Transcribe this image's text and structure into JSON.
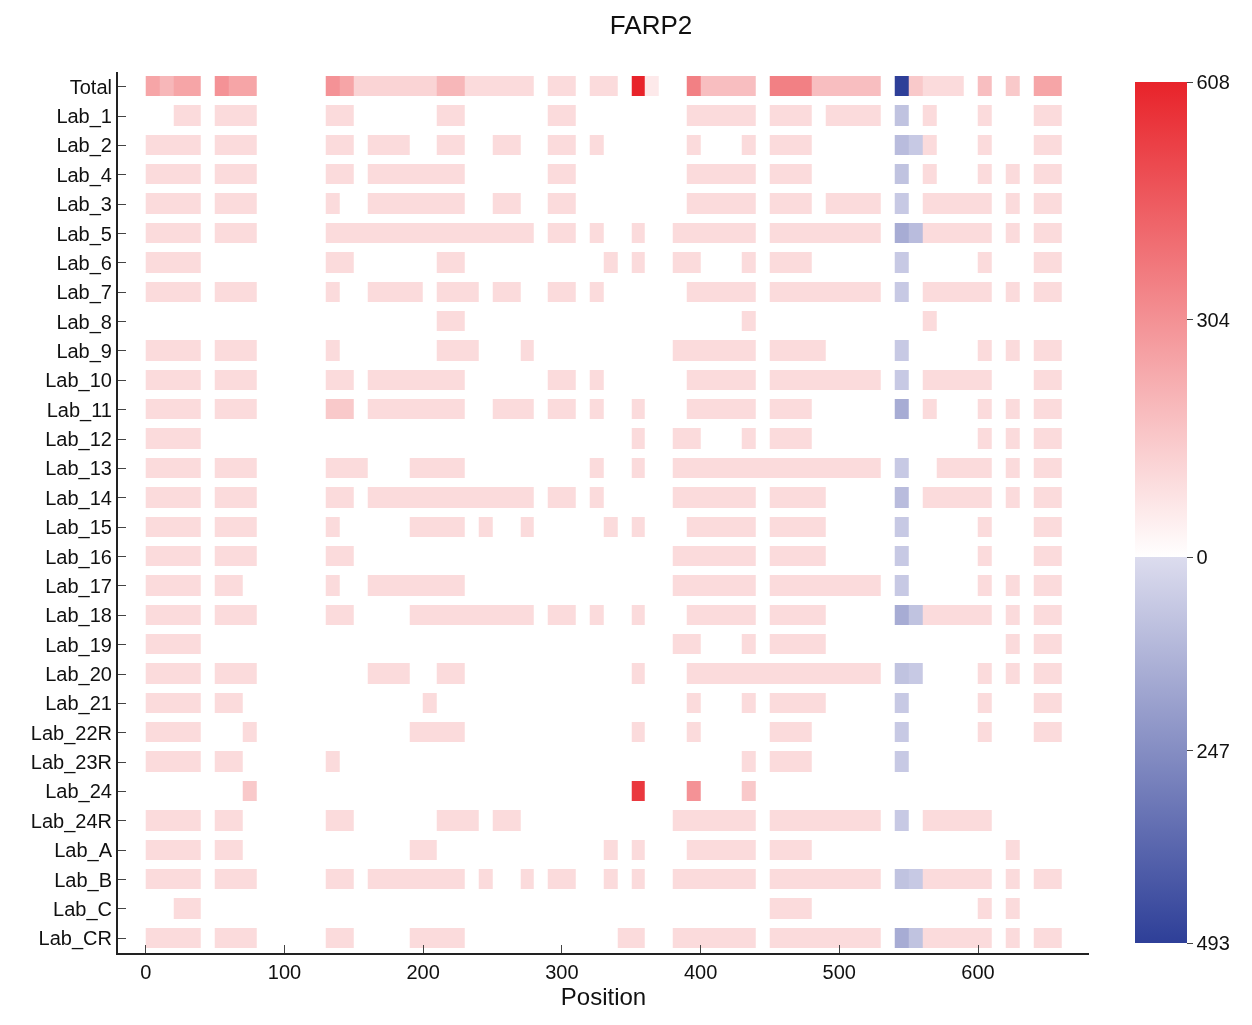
{
  "chart_data": {
    "type": "heatmap",
    "title": "FARP2",
    "xlabel": "Position",
    "x": [
      5,
      15,
      25,
      35,
      45,
      55,
      65,
      75,
      85,
      95,
      105,
      115,
      125,
      135,
      145,
      155,
      165,
      175,
      185,
      195,
      205,
      215,
      225,
      235,
      245,
      255,
      265,
      275,
      285,
      295,
      305,
      315,
      325,
      335,
      345,
      355,
      365,
      375,
      385,
      395,
      405,
      415,
      425,
      435,
      445,
      455,
      465,
      475,
      485,
      495,
      505,
      515,
      525,
      535,
      545,
      555,
      565,
      575,
      585,
      595,
      605,
      615,
      625,
      635,
      645,
      655
    ],
    "xlim": [
      -20,
      680
    ],
    "xticks": [
      0,
      100,
      200,
      300,
      400,
      500,
      600
    ],
    "y_categories": [
      "Total",
      "Lab_1",
      "Lab_2",
      "Lab_4",
      "Lab_3",
      "Lab_5",
      "Lab_6",
      "Lab_7",
      "Lab_8",
      "Lab_9",
      "Lab_10",
      "Lab_11",
      "Lab_12",
      "Lab_13",
      "Lab_14",
      "Lab_15",
      "Lab_16",
      "Lab_17",
      "Lab_18",
      "Lab_19",
      "Lab_20",
      "Lab_21",
      "Lab_22R",
      "Lab_23R",
      "Lab_24",
      "Lab_24R",
      "Lab_A",
      "Lab_B",
      "Lab_C",
      "Lab_CR"
    ],
    "clim": [
      -493,
      608
    ],
    "cticks": [
      608,
      304,
      0,
      {
        "value": -247,
        "label": "247"
      },
      {
        "value": -493,
        "label": "493"
      }
    ],
    "colors": [
      "#2e3f98",
      "#dcdcee",
      "#ffffff",
      "#e8232a"
    ],
    "cells": [
      [
        250,
        200,
        250,
        250,
        0,
        300,
        250,
        250,
        0,
        0,
        0,
        0,
        0,
        300,
        250,
        120,
        120,
        120,
        120,
        120,
        120,
        200,
        200,
        100,
        100,
        100,
        100,
        100,
        0,
        100,
        100,
        0,
        100,
        100,
        0,
        608,
        60,
        0,
        0,
        350,
        180,
        180,
        180,
        180,
        0,
        350,
        350,
        350,
        180,
        180,
        180,
        180,
        180,
        0,
        -493,
        150,
        100,
        100,
        100,
        0,
        180,
        0,
        150,
        0,
        250,
        250
      ],
      [
        0,
        0,
        100,
        100,
        0,
        100,
        100,
        100,
        0,
        0,
        0,
        0,
        0,
        100,
        100,
        0,
        0,
        0,
        0,
        0,
        0,
        100,
        100,
        0,
        0,
        0,
        0,
        0,
        0,
        100,
        100,
        0,
        0,
        0,
        0,
        0,
        0,
        0,
        0,
        100,
        100,
        100,
        100,
        100,
        0,
        100,
        100,
        100,
        0,
        100,
        100,
        100,
        100,
        0,
        -80,
        0,
        100,
        0,
        0,
        0,
        100,
        0,
        0,
        0,
        100,
        100
      ],
      [
        100,
        100,
        100,
        100,
        0,
        100,
        100,
        100,
        0,
        0,
        0,
        0,
        0,
        100,
        100,
        0,
        100,
        100,
        100,
        0,
        0,
        100,
        100,
        0,
        0,
        100,
        100,
        0,
        0,
        100,
        100,
        0,
        100,
        0,
        0,
        0,
        0,
        0,
        0,
        100,
        0,
        0,
        0,
        100,
        0,
        100,
        100,
        100,
        0,
        0,
        0,
        0,
        0,
        0,
        -100,
        -60,
        100,
        0,
        0,
        0,
        100,
        0,
        0,
        0,
        100,
        100
      ],
      [
        100,
        100,
        100,
        100,
        0,
        100,
        100,
        100,
        0,
        0,
        0,
        0,
        0,
        100,
        100,
        0,
        100,
        100,
        100,
        100,
        100,
        100,
        100,
        0,
        0,
        0,
        0,
        0,
        0,
        100,
        100,
        0,
        0,
        0,
        0,
        0,
        0,
        0,
        0,
        100,
        100,
        100,
        100,
        100,
        0,
        100,
        100,
        100,
        0,
        0,
        0,
        0,
        0,
        0,
        -80,
        0,
        100,
        0,
        0,
        0,
        100,
        0,
        100,
        0,
        100,
        100
      ],
      [
        100,
        100,
        100,
        100,
        0,
        100,
        100,
        100,
        0,
        0,
        0,
        0,
        0,
        100,
        0,
        0,
        100,
        100,
        100,
        100,
        100,
        100,
        100,
        0,
        0,
        100,
        100,
        0,
        0,
        100,
        100,
        0,
        0,
        0,
        0,
        0,
        0,
        0,
        0,
        100,
        100,
        100,
        100,
        100,
        0,
        100,
        100,
        100,
        0,
        100,
        100,
        100,
        100,
        0,
        -60,
        0,
        100,
        100,
        100,
        100,
        100,
        0,
        100,
        0,
        100,
        100
      ],
      [
        100,
        100,
        100,
        100,
        0,
        100,
        100,
        100,
        0,
        0,
        0,
        0,
        0,
        100,
        100,
        100,
        100,
        100,
        100,
        100,
        100,
        100,
        100,
        100,
        100,
        100,
        100,
        100,
        0,
        100,
        100,
        0,
        100,
        0,
        0,
        100,
        0,
        0,
        100,
        100,
        100,
        100,
        100,
        100,
        0,
        100,
        100,
        100,
        100,
        100,
        100,
        100,
        100,
        0,
        -150,
        -100,
        100,
        100,
        100,
        100,
        100,
        0,
        100,
        0,
        100,
        100
      ],
      [
        100,
        100,
        100,
        100,
        0,
        0,
        0,
        0,
        0,
        0,
        0,
        0,
        0,
        100,
        100,
        0,
        0,
        0,
        0,
        0,
        0,
        100,
        100,
        0,
        0,
        0,
        0,
        0,
        0,
        0,
        0,
        0,
        0,
        100,
        0,
        100,
        0,
        0,
        100,
        100,
        0,
        0,
        0,
        100,
        0,
        100,
        100,
        100,
        0,
        0,
        0,
        0,
        0,
        0,
        -60,
        0,
        0,
        0,
        0,
        0,
        100,
        0,
        0,
        0,
        100,
        100
      ],
      [
        100,
        100,
        100,
        100,
        0,
        100,
        100,
        100,
        0,
        0,
        0,
        0,
        0,
        100,
        0,
        0,
        100,
        100,
        100,
        100,
        0,
        100,
        100,
        100,
        0,
        100,
        100,
        0,
        0,
        100,
        100,
        0,
        100,
        0,
        0,
        0,
        0,
        0,
        0,
        100,
        100,
        100,
        100,
        100,
        0,
        100,
        100,
        100,
        100,
        100,
        100,
        100,
        100,
        0,
        -60,
        0,
        100,
        100,
        100,
        100,
        100,
        0,
        100,
        0,
        100,
        100
      ],
      [
        0,
        0,
        0,
        0,
        0,
        0,
        0,
        0,
        0,
        0,
        0,
        0,
        0,
        0,
        0,
        0,
        0,
        0,
        0,
        0,
        0,
        100,
        100,
        0,
        0,
        0,
        0,
        0,
        0,
        0,
        0,
        0,
        0,
        0,
        0,
        0,
        0,
        0,
        0,
        0,
        0,
        0,
        0,
        100,
        0,
        0,
        0,
        0,
        0,
        0,
        0,
        0,
        0,
        0,
        0,
        0,
        100,
        0,
        0,
        0,
        0,
        0,
        0,
        0,
        0,
        0
      ],
      [
        100,
        100,
        100,
        100,
        0,
        100,
        100,
        100,
        0,
        0,
        0,
        0,
        0,
        100,
        0,
        0,
        0,
        0,
        0,
        0,
        0,
        100,
        100,
        100,
        0,
        0,
        0,
        100,
        0,
        0,
        0,
        0,
        0,
        0,
        0,
        0,
        0,
        0,
        100,
        100,
        100,
        100,
        100,
        100,
        0,
        100,
        100,
        100,
        100,
        0,
        0,
        0,
        0,
        0,
        -60,
        0,
        0,
        0,
        0,
        0,
        100,
        0,
        100,
        0,
        100,
        100
      ],
      [
        100,
        100,
        100,
        100,
        0,
        100,
        100,
        100,
        0,
        0,
        0,
        0,
        0,
        100,
        100,
        0,
        100,
        100,
        100,
        100,
        100,
        100,
        100,
        0,
        0,
        0,
        0,
        0,
        0,
        100,
        100,
        0,
        100,
        0,
        0,
        0,
        0,
        0,
        0,
        100,
        100,
        100,
        100,
        100,
        0,
        100,
        100,
        100,
        100,
        100,
        100,
        100,
        100,
        0,
        -60,
        0,
        100,
        100,
        100,
        100,
        100,
        0,
        0,
        0,
        100,
        100
      ],
      [
        100,
        100,
        100,
        100,
        0,
        100,
        100,
        100,
        0,
        0,
        0,
        0,
        0,
        150,
        150,
        0,
        100,
        100,
        100,
        100,
        100,
        100,
        100,
        0,
        0,
        100,
        100,
        100,
        0,
        100,
        100,
        0,
        100,
        0,
        0,
        100,
        0,
        0,
        0,
        100,
        100,
        100,
        100,
        100,
        0,
        100,
        100,
        100,
        0,
        0,
        0,
        0,
        0,
        0,
        -150,
        0,
        100,
        0,
        0,
        0,
        100,
        0,
        100,
        0,
        100,
        100
      ],
      [
        100,
        100,
        100,
        100,
        0,
        0,
        0,
        0,
        0,
        0,
        0,
        0,
        0,
        0,
        0,
        0,
        0,
        0,
        0,
        0,
        0,
        0,
        0,
        0,
        0,
        0,
        0,
        0,
        0,
        0,
        0,
        0,
        0,
        0,
        0,
        100,
        0,
        0,
        100,
        100,
        0,
        0,
        0,
        100,
        0,
        100,
        100,
        100,
        0,
        0,
        0,
        0,
        0,
        0,
        0,
        0,
        0,
        0,
        0,
        0,
        100,
        0,
        100,
        0,
        100,
        100
      ],
      [
        100,
        100,
        100,
        100,
        0,
        100,
        100,
        100,
        0,
        0,
        0,
        0,
        0,
        100,
        100,
        100,
        0,
        0,
        0,
        100,
        100,
        100,
        100,
        0,
        0,
        0,
        0,
        0,
        0,
        0,
        0,
        0,
        100,
        0,
        0,
        100,
        0,
        0,
        100,
        100,
        100,
        100,
        100,
        100,
        100,
        100,
        100,
        100,
        100,
        100,
        100,
        100,
        100,
        0,
        -60,
        0,
        0,
        100,
        100,
        100,
        100,
        0,
        100,
        0,
        100,
        100
      ],
      [
        100,
        100,
        100,
        100,
        0,
        100,
        100,
        100,
        0,
        0,
        0,
        0,
        0,
        100,
        100,
        0,
        100,
        100,
        100,
        100,
        100,
        100,
        100,
        100,
        100,
        100,
        100,
        100,
        0,
        100,
        100,
        0,
        100,
        0,
        0,
        0,
        0,
        0,
        100,
        100,
        100,
        100,
        100,
        100,
        0,
        100,
        100,
        100,
        100,
        0,
        0,
        0,
        0,
        0,
        -100,
        0,
        100,
        100,
        100,
        100,
        100,
        0,
        100,
        0,
        100,
        100
      ],
      [
        100,
        100,
        100,
        100,
        0,
        100,
        100,
        100,
        0,
        0,
        0,
        0,
        0,
        100,
        0,
        0,
        0,
        0,
        0,
        100,
        100,
        100,
        100,
        0,
        100,
        0,
        0,
        100,
        0,
        0,
        0,
        0,
        0,
        100,
        0,
        100,
        0,
        0,
        0,
        100,
        100,
        100,
        100,
        100,
        0,
        100,
        100,
        100,
        100,
        0,
        0,
        0,
        0,
        0,
        -60,
        0,
        0,
        0,
        0,
        0,
        100,
        0,
        0,
        0,
        100,
        100
      ],
      [
        100,
        100,
        100,
        100,
        0,
        100,
        100,
        100,
        0,
        0,
        0,
        0,
        0,
        100,
        100,
        0,
        0,
        0,
        0,
        0,
        0,
        0,
        0,
        0,
        0,
        0,
        0,
        0,
        0,
        0,
        0,
        0,
        0,
        0,
        0,
        0,
        0,
        0,
        100,
        100,
        100,
        100,
        100,
        100,
        0,
        100,
        100,
        100,
        100,
        0,
        0,
        0,
        0,
        0,
        -60,
        0,
        0,
        0,
        0,
        0,
        100,
        0,
        0,
        0,
        100,
        100
      ],
      [
        100,
        100,
        100,
        100,
        0,
        100,
        100,
        0,
        0,
        0,
        0,
        0,
        0,
        100,
        0,
        0,
        100,
        100,
        100,
        100,
        100,
        100,
        100,
        0,
        0,
        0,
        0,
        0,
        0,
        0,
        0,
        0,
        0,
        0,
        0,
        0,
        0,
        0,
        100,
        100,
        100,
        100,
        100,
        100,
        0,
        100,
        100,
        100,
        100,
        100,
        100,
        100,
        100,
        0,
        -60,
        0,
        0,
        0,
        0,
        0,
        100,
        0,
        100,
        0,
        100,
        100
      ],
      [
        100,
        100,
        100,
        100,
        0,
        100,
        100,
        100,
        0,
        0,
        0,
        0,
        0,
        100,
        100,
        0,
        0,
        0,
        0,
        100,
        100,
        100,
        100,
        100,
        100,
        100,
        100,
        100,
        0,
        100,
        100,
        0,
        100,
        0,
        0,
        100,
        0,
        0,
        0,
        100,
        100,
        100,
        100,
        100,
        0,
        100,
        100,
        100,
        100,
        0,
        0,
        0,
        0,
        0,
        -150,
        -80,
        100,
        100,
        100,
        100,
        100,
        0,
        100,
        0,
        100,
        100
      ],
      [
        100,
        100,
        100,
        100,
        0,
        0,
        0,
        0,
        0,
        0,
        0,
        0,
        0,
        0,
        0,
        0,
        0,
        0,
        0,
        0,
        0,
        0,
        0,
        0,
        0,
        0,
        0,
        0,
        0,
        0,
        0,
        0,
        0,
        0,
        0,
        0,
        0,
        0,
        100,
        100,
        0,
        0,
        0,
        100,
        0,
        100,
        100,
        100,
        100,
        0,
        0,
        0,
        0,
        0,
        0,
        0,
        0,
        0,
        0,
        0,
        0,
        0,
        100,
        0,
        100,
        100
      ],
      [
        100,
        100,
        100,
        100,
        0,
        100,
        100,
        100,
        0,
        0,
        0,
        0,
        0,
        0,
        0,
        0,
        100,
        100,
        100,
        0,
        0,
        100,
        100,
        0,
        0,
        0,
        0,
        0,
        0,
        0,
        0,
        0,
        0,
        0,
        0,
        100,
        0,
        0,
        0,
        100,
        100,
        100,
        100,
        100,
        100,
        100,
        100,
        100,
        100,
        100,
        100,
        100,
        100,
        0,
        -80,
        -60,
        0,
        0,
        0,
        0,
        100,
        0,
        100,
        0,
        100,
        100
      ],
      [
        100,
        100,
        100,
        100,
        0,
        100,
        100,
        0,
        0,
        0,
        0,
        0,
        0,
        0,
        0,
        0,
        0,
        0,
        0,
        0,
        100,
        0,
        0,
        0,
        0,
        0,
        0,
        0,
        0,
        0,
        0,
        0,
        0,
        0,
        0,
        0,
        0,
        0,
        0,
        100,
        0,
        0,
        0,
        100,
        0,
        100,
        100,
        100,
        100,
        0,
        0,
        0,
        0,
        0,
        -60,
        0,
        0,
        0,
        0,
        0,
        100,
        0,
        0,
        0,
        100,
        100
      ],
      [
        100,
        100,
        100,
        100,
        0,
        0,
        0,
        100,
        0,
        0,
        0,
        0,
        0,
        0,
        0,
        0,
        0,
        0,
        0,
        100,
        100,
        100,
        100,
        0,
        0,
        0,
        0,
        0,
        0,
        0,
        0,
        0,
        0,
        0,
        0,
        100,
        0,
        0,
        0,
        100,
        0,
        0,
        0,
        0,
        0,
        100,
        100,
        100,
        0,
        0,
        0,
        0,
        0,
        0,
        -60,
        0,
        0,
        0,
        0,
        0,
        100,
        0,
        0,
        0,
        100,
        100
      ],
      [
        100,
        100,
        100,
        100,
        0,
        100,
        100,
        0,
        0,
        0,
        0,
        0,
        0,
        100,
        0,
        0,
        0,
        0,
        0,
        0,
        0,
        0,
        0,
        0,
        0,
        0,
        0,
        0,
        0,
        0,
        0,
        0,
        0,
        0,
        0,
        0,
        0,
        0,
        0,
        0,
        0,
        0,
        0,
        100,
        0,
        100,
        100,
        100,
        0,
        0,
        0,
        0,
        0,
        0,
        -60,
        0,
        0,
        0,
        0,
        0,
        0,
        0,
        0,
        0,
        0,
        0
      ],
      [
        0,
        0,
        0,
        0,
        0,
        0,
        0,
        150,
        0,
        0,
        0,
        0,
        0,
        0,
        0,
        0,
        0,
        0,
        0,
        0,
        0,
        0,
        0,
        0,
        0,
        0,
        0,
        0,
        0,
        0,
        0,
        0,
        0,
        0,
        0,
        550,
        0,
        0,
        0,
        300,
        0,
        0,
        0,
        150,
        0,
        0,
        0,
        0,
        0,
        0,
        0,
        0,
        0,
        0,
        0,
        0,
        0,
        0,
        0,
        0,
        0,
        0,
        0,
        0,
        0,
        0
      ],
      [
        100,
        100,
        100,
        100,
        0,
        100,
        100,
        0,
        0,
        0,
        0,
        0,
        0,
        100,
        100,
        0,
        0,
        0,
        0,
        0,
        0,
        100,
        100,
        100,
        0,
        100,
        100,
        0,
        0,
        0,
        0,
        0,
        0,
        0,
        0,
        0,
        0,
        0,
        100,
        100,
        100,
        100,
        100,
        100,
        0,
        100,
        100,
        100,
        100,
        100,
        100,
        100,
        100,
        0,
        -60,
        0,
        100,
        100,
        100,
        100,
        100,
        0,
        0,
        0,
        0,
        0
      ],
      [
        100,
        100,
        100,
        100,
        0,
        100,
        100,
        0,
        0,
        0,
        0,
        0,
        0,
        0,
        0,
        0,
        0,
        0,
        0,
        100,
        100,
        0,
        0,
        0,
        0,
        0,
        0,
        0,
        0,
        0,
        0,
        0,
        0,
        100,
        0,
        100,
        0,
        0,
        0,
        100,
        100,
        100,
        100,
        100,
        0,
        100,
        100,
        100,
        0,
        0,
        0,
        0,
        0,
        0,
        0,
        0,
        0,
        0,
        0,
        0,
        0,
        0,
        100,
        0,
        0,
        0
      ],
      [
        100,
        100,
        100,
        100,
        0,
        100,
        100,
        100,
        0,
        0,
        0,
        0,
        0,
        100,
        100,
        0,
        100,
        100,
        100,
        100,
        100,
        100,
        100,
        0,
        100,
        0,
        0,
        100,
        0,
        100,
        100,
        0,
        0,
        100,
        0,
        100,
        0,
        0,
        100,
        100,
        100,
        100,
        100,
        100,
        0,
        100,
        100,
        100,
        100,
        100,
        100,
        100,
        100,
        0,
        -80,
        -60,
        100,
        100,
        100,
        100,
        100,
        0,
        100,
        0,
        100,
        100
      ],
      [
        0,
        0,
        100,
        100,
        0,
        0,
        0,
        0,
        0,
        0,
        0,
        0,
        0,
        0,
        0,
        0,
        0,
        0,
        0,
        0,
        0,
        0,
        0,
        0,
        0,
        0,
        0,
        0,
        0,
        0,
        0,
        0,
        0,
        0,
        0,
        0,
        0,
        0,
        0,
        0,
        0,
        0,
        0,
        0,
        0,
        100,
        100,
        100,
        0,
        0,
        0,
        0,
        0,
        0,
        0,
        0,
        0,
        0,
        0,
        0,
        100,
        0,
        100,
        0,
        0,
        0
      ],
      [
        100,
        100,
        100,
        100,
        0,
        100,
        100,
        100,
        0,
        0,
        0,
        0,
        0,
        100,
        100,
        0,
        0,
        0,
        0,
        100,
        100,
        100,
        100,
        0,
        0,
        0,
        0,
        0,
        0,
        0,
        0,
        0,
        0,
        0,
        100,
        100,
        0,
        0,
        100,
        100,
        100,
        100,
        100,
        100,
        0,
        100,
        100,
        100,
        100,
        100,
        100,
        100,
        100,
        0,
        -150,
        -80,
        100,
        100,
        100,
        100,
        100,
        0,
        100,
        0,
        100,
        100
      ]
    ]
  }
}
